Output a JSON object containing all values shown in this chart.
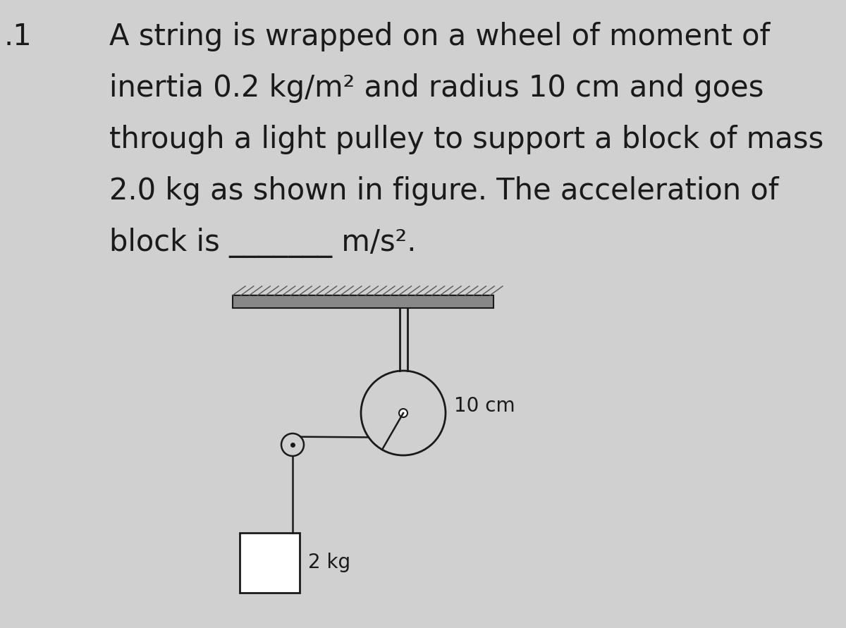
{
  "bg_color": "#d0d0d0",
  "text_color": "#1a1a1a",
  "line_color": "#1a1a1a",
  "problem_text_lines": [
    "A string is wrapped on a wheel of moment of",
    "inertia 0.2 kg/m² and radius 10 cm and goes",
    "through a light pulley to support a block of mass",
    "2.0 kg as shown in figure. The acceleration of",
    "block is _______ m/s²."
  ],
  "label_10cm": "10 cm",
  "label_2kg": "2 kg",
  "fig_width": 12.0,
  "fig_height": 8.91,
  "dpi": 100,
  "text_fontsize": 30,
  "number_fontsize": 30,
  "bar_color": "#888888",
  "bar_dark": "#555555"
}
